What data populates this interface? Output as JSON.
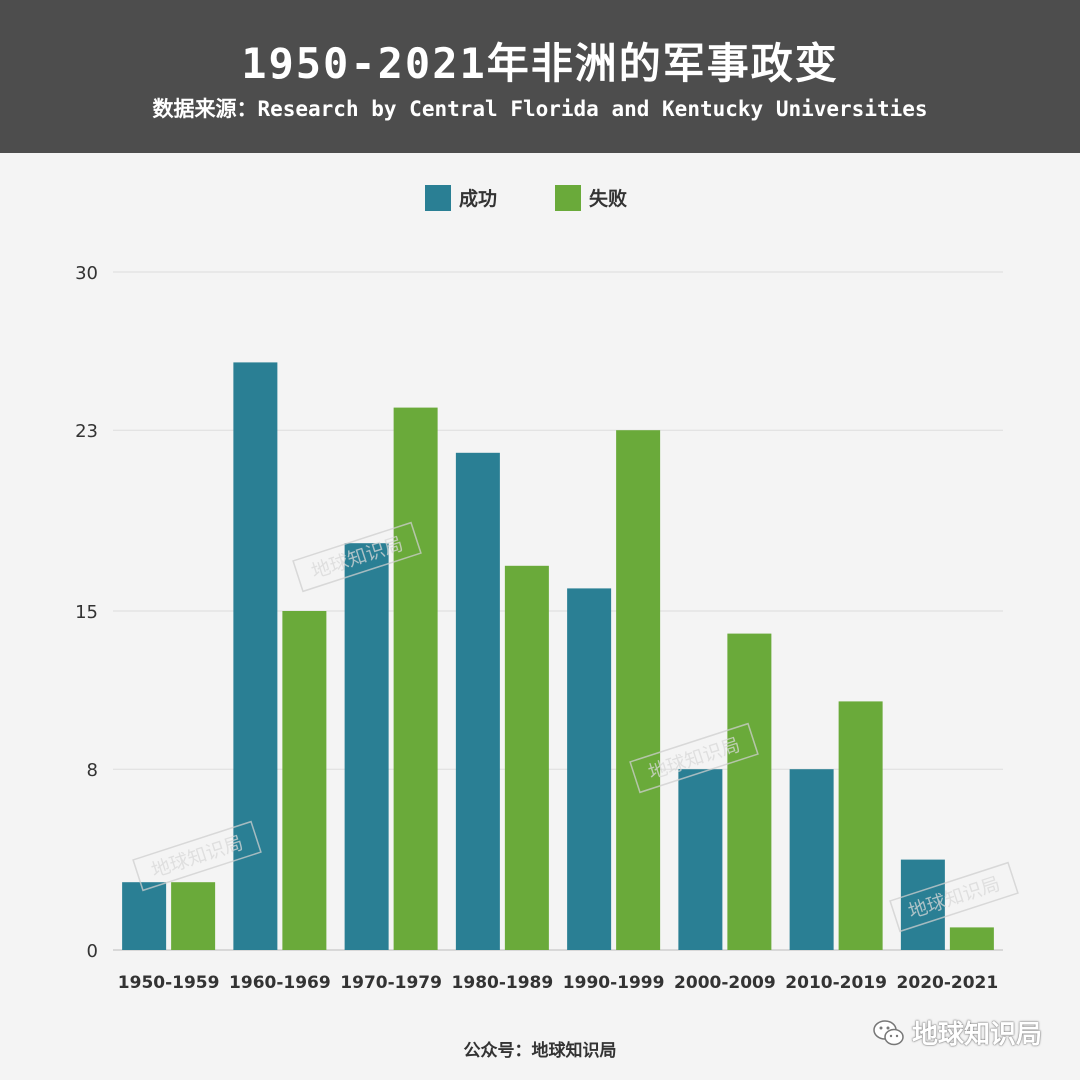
{
  "header": {
    "title": "1950-2021年非洲的军事政变",
    "subtitle": "数据来源：Research by Central Florida and Kentucky Universities"
  },
  "chart_data": {
    "type": "bar",
    "categories": [
      "1950-1959",
      "1960-1969",
      "1970-1979",
      "1980-1989",
      "1990-1999",
      "2000-2009",
      "2010-2019",
      "2020-2021"
    ],
    "series": [
      {
        "name": "成功",
        "color": "#2a7f94",
        "values": [
          3,
          26,
          18,
          22,
          16,
          8,
          8,
          4
        ]
      },
      {
        "name": "失败",
        "color": "#6aaa3a",
        "values": [
          3,
          15,
          24,
          17,
          23,
          14,
          11,
          1
        ]
      }
    ],
    "yticks": [
      0,
      8,
      15,
      23,
      30
    ],
    "ylim": [
      0,
      30
    ],
    "grid": true,
    "legend_position": "top-center"
  },
  "watermark": "地球知识局",
  "footer": {
    "text": "公众号：地球知识局",
    "wechat_label": "地球知识局"
  }
}
